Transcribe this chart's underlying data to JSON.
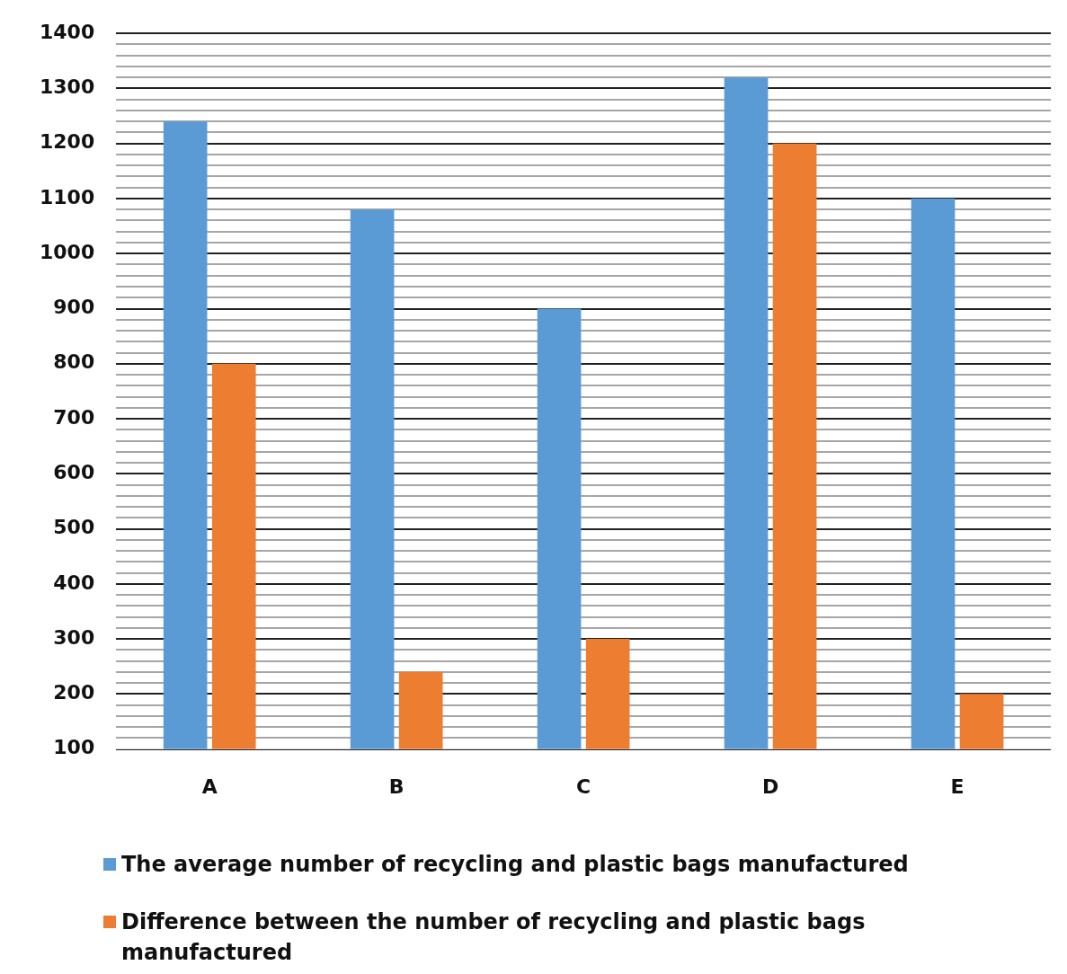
{
  "chart_data": {
    "type": "bar",
    "categories": [
      "A",
      "B",
      "C",
      "D",
      "E"
    ],
    "series": [
      {
        "name": "The average number of recycling and plastic bags manufactured",
        "color": "#5b9bd5",
        "values": [
          1240,
          1080,
          900,
          1320,
          1100
        ]
      },
      {
        "name": "Difference between the number of recycling and plastic bags manufactured",
        "color": "#ed7d31",
        "values": [
          800,
          240,
          300,
          1200,
          200
        ]
      }
    ],
    "ylim": [
      100,
      1400
    ],
    "yticks": [
      100,
      {
        "value": 120,
        "label": null
      },
      {
        "value": 140,
        "label": null
      },
      {
        "value": 160,
        "label": null
      },
      {
        "value": 180,
        "label": null
      },
      200,
      {
        "value": 220,
        "label": null
      },
      {
        "value": 240,
        "label": null
      },
      {
        "value": 260,
        "label": null
      },
      {
        "value": 280,
        "label": null
      },
      300,
      {
        "value": 320,
        "label": null
      },
      {
        "value": 340,
        "label": null
      },
      {
        "value": 360,
        "label": null
      },
      {
        "value": 380,
        "label": null
      },
      400,
      {
        "value": 420,
        "label": null
      },
      {
        "value": 440,
        "label": null
      },
      {
        "value": 460,
        "label": null
      },
      {
        "value": 480,
        "label": null
      },
      500,
      {
        "value": 520,
        "label": null
      },
      {
        "value": 540,
        "label": null
      },
      {
        "value": 560,
        "label": null
      },
      {
        "value": 580,
        "label": null
      },
      600,
      {
        "value": 620,
        "label": null
      },
      {
        "value": 640,
        "label": null
      },
      {
        "value": 660,
        "label": null
      },
      {
        "value": 680,
        "label": null
      },
      700,
      {
        "value": 720,
        "label": null
      },
      {
        "value": 740,
        "label": null
      },
      {
        "value": 760,
        "label": null
      },
      {
        "value": 780,
        "label": null
      },
      800,
      {
        "value": 820,
        "label": null
      },
      {
        "value": 840,
        "label": null
      },
      {
        "value": 860,
        "label": null
      },
      {
        "value": 880,
        "label": null
      },
      900,
      {
        "value": 920,
        "label": null
      },
      {
        "value": 940,
        "label": null
      },
      {
        "value": 960,
        "label": null
      },
      {
        "value": 980,
        "label": null
      },
      1000,
      {
        "value": 1020,
        "label": null
      },
      {
        "value": 1040,
        "label": null
      },
      {
        "value": 1060,
        "label": null
      },
      {
        "value": 1080,
        "label": null
      },
      1100,
      {
        "value": 1120,
        "label": null
      },
      {
        "value": 1140,
        "label": null
      },
      {
        "value": 1160,
        "label": null
      },
      {
        "value": 1180,
        "label": null
      },
      1200,
      {
        "value": 1220,
        "label": null
      },
      {
        "value": 1240,
        "label": null
      },
      {
        "value": 1260,
        "label": null
      },
      {
        "value": 1280,
        "label": null
      },
      1300,
      {
        "value": 1320,
        "label": null
      },
      {
        "value": 1340,
        "label": null
      },
      {
        "value": 1360,
        "label": null
      },
      {
        "value": 1380,
        "label": null
      },
      1400
    ],
    "grid": "y",
    "legend": "bottom"
  }
}
